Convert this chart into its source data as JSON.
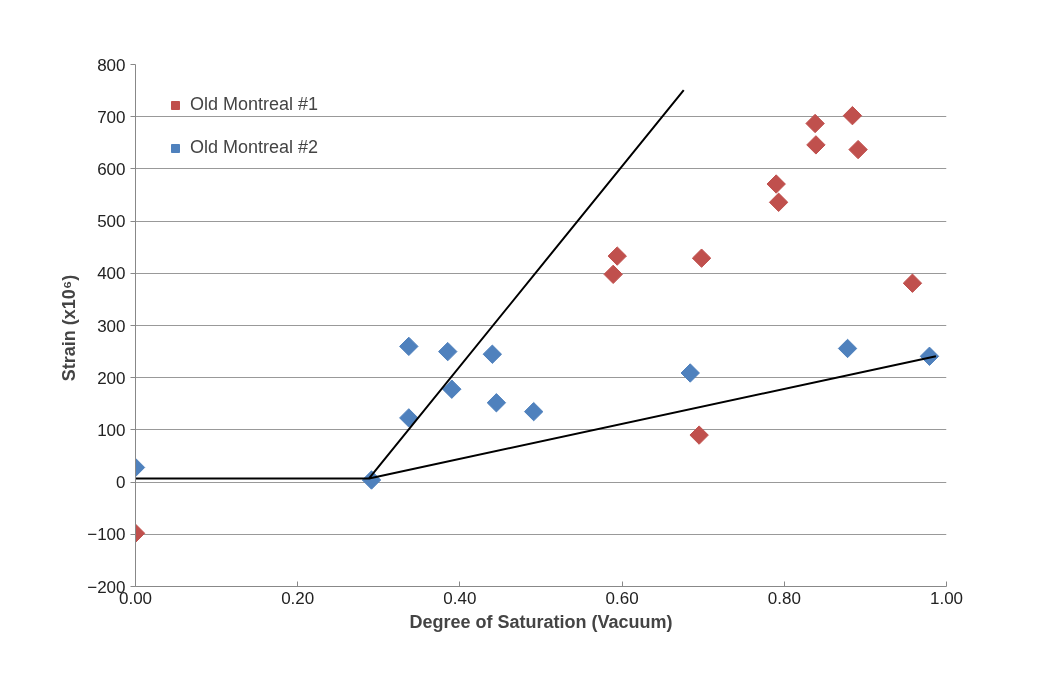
{
  "chart_data": {
    "type": "scatter",
    "xlabel": "Degree of Saturation (Vacuum)",
    "ylabel": "Strain  (x10⁶)",
    "xlim": [
      0,
      1
    ],
    "ylim": [
      -200,
      800
    ],
    "xticks": [
      {
        "value": 0,
        "label": "0.00"
      },
      {
        "value": 0.2,
        "label": "0.20"
      },
      {
        "value": 0.4,
        "label": "0.40"
      },
      {
        "value": 0.6,
        "label": "0.60"
      },
      {
        "value": 0.8,
        "label": "0.80"
      },
      {
        "value": 1,
        "label": "1.00"
      }
    ],
    "yticks": [
      -200,
      -100,
      0,
      100,
      200,
      300,
      400,
      500,
      600,
      700,
      800
    ],
    "grid": "y",
    "legend": "top left",
    "marker": "diamond",
    "series": [
      {
        "name": "Old Montreal #1",
        "color": "#c0504d",
        "x": [
          0.0,
          0.589,
          0.594,
          0.698,
          0.695,
          0.79,
          0.793,
          0.838,
          0.839,
          0.884,
          0.891,
          0.958
        ],
        "values": [
          -98,
          398,
          433,
          429,
          90,
          571,
          536,
          687,
          646,
          702,
          637,
          381
        ]
      },
      {
        "name": "Old Montreal #2",
        "color": "#4f81bd",
        "x": [
          0.0,
          0.291,
          0.337,
          0.337,
          0.385,
          0.39,
          0.44,
          0.445,
          0.491,
          0.684,
          0.878,
          0.979
        ],
        "values": [
          28,
          4,
          260,
          123,
          250,
          178,
          245,
          152,
          135,
          209,
          256,
          241
        ]
      },
      {
        "type": "line",
        "marker": "none",
        "color": "#000000",
        "x": [
          0.0,
          0.288,
          0.676
        ],
        "values": [
          7,
          7,
          751
        ]
      },
      {
        "type": "line",
        "marker": "none",
        "color": "#000000",
        "x": [
          0.288,
          0.987
        ],
        "values": [
          7,
          241
        ]
      }
    ]
  }
}
